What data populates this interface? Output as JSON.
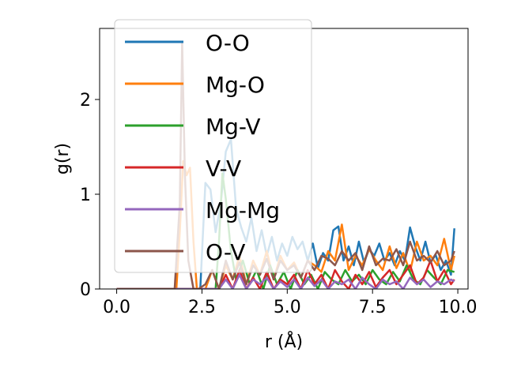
{
  "chart_data": {
    "type": "line",
    "xlabel": "r (Å)",
    "ylabel": "g(r)",
    "xlim": [
      -0.5,
      10.3
    ],
    "ylim": [
      0,
      2.75
    ],
    "xticks": [
      0.0,
      2.5,
      5.0,
      7.5,
      10.0
    ],
    "xtick_labels": [
      "0.0",
      "2.5",
      "5.0",
      "7.5",
      "10.0"
    ],
    "yticks": [
      0,
      1,
      2
    ],
    "ytick_labels": [
      "0",
      "1",
      "2"
    ],
    "grid": false,
    "legend": "upper-left",
    "series": [
      {
        "name": "O-O",
        "color": "#1f77b4",
        "x": [
          0.0,
          2.45,
          2.6,
          2.75,
          2.9,
          3.05,
          3.2,
          3.35,
          3.5,
          3.65,
          3.8,
          3.95,
          4.1,
          4.25,
          4.4,
          4.55,
          4.7,
          4.85,
          5.0,
          5.15,
          5.3,
          5.45,
          5.6,
          5.75,
          5.9,
          6.05,
          6.2,
          6.35,
          6.5,
          6.65,
          6.8,
          6.95,
          7.1,
          7.25,
          7.4,
          7.55,
          7.7,
          7.85,
          8.0,
          8.15,
          8.3,
          8.45,
          8.6,
          8.75,
          8.9,
          9.05,
          9.2,
          9.35,
          9.5,
          9.65,
          9.8,
          9.9
        ],
        "y": [
          0.0,
          0.0,
          1.12,
          1.05,
          0.6,
          0.9,
          1.45,
          1.58,
          0.85,
          0.65,
          0.5,
          0.75,
          0.4,
          0.62,
          0.35,
          0.55,
          0.3,
          0.48,
          0.35,
          0.55,
          0.42,
          0.5,
          0.3,
          0.48,
          0.22,
          0.38,
          0.3,
          0.62,
          0.66,
          0.3,
          0.45,
          0.25,
          0.5,
          0.28,
          0.42,
          0.35,
          0.48,
          0.3,
          0.38,
          0.25,
          0.4,
          0.3,
          0.65,
          0.45,
          0.3,
          0.5,
          0.28,
          0.36,
          0.2,
          0.3,
          0.15,
          0.64
        ]
      },
      {
        "name": "Mg-O",
        "color": "#ff7f0e",
        "x": [
          0.0,
          1.75,
          1.85,
          1.95,
          2.05,
          2.15,
          2.25,
          2.35,
          2.6,
          2.8,
          3.0,
          3.2,
          3.4,
          3.6,
          3.8,
          4.0,
          4.2,
          4.4,
          4.6,
          4.8,
          5.0,
          5.2,
          5.4,
          5.6,
          5.8,
          6.0,
          6.2,
          6.4,
          6.6,
          6.8,
          7.0,
          7.2,
          7.4,
          7.6,
          7.8,
          8.0,
          8.2,
          8.4,
          8.6,
          8.8,
          9.0,
          9.2,
          9.4,
          9.6,
          9.8,
          9.9
        ],
        "y": [
          0.0,
          0.0,
          0.6,
          1.35,
          1.2,
          1.28,
          0.5,
          0.0,
          0.0,
          0.2,
          0.0,
          0.25,
          0.1,
          0.35,
          0.05,
          0.3,
          0.15,
          0.4,
          0.1,
          0.35,
          0.2,
          0.28,
          0.12,
          0.3,
          0.25,
          0.18,
          0.4,
          0.3,
          0.68,
          0.2,
          0.35,
          0.25,
          0.42,
          0.3,
          0.2,
          0.45,
          0.22,
          0.38,
          0.18,
          0.5,
          0.3,
          0.35,
          0.25,
          0.53,
          0.2,
          0.35
        ]
      },
      {
        "name": "Mg-V",
        "color": "#2ca02c",
        "x": [
          0.0,
          2.9,
          3.0,
          3.1,
          3.2,
          3.35,
          3.5,
          3.7,
          3.9,
          4.1,
          4.3,
          4.5,
          4.7,
          4.9,
          5.1,
          5.3,
          5.5,
          5.7,
          5.9,
          6.1,
          6.3,
          6.5,
          6.7,
          6.9,
          7.1,
          7.3,
          7.5,
          7.7,
          7.9,
          8.1,
          8.3,
          8.5,
          8.7,
          8.9,
          9.1,
          9.3,
          9.5,
          9.7,
          9.9
        ],
        "y": [
          0.0,
          0.0,
          0.5,
          1.22,
          0.95,
          0.4,
          0.1,
          0.3,
          0.05,
          0.2,
          0.0,
          0.25,
          0.05,
          0.18,
          0.0,
          0.2,
          0.05,
          0.15,
          0.0,
          0.18,
          0.1,
          0.05,
          0.2,
          0.08,
          0.15,
          0.05,
          0.2,
          0.1,
          0.05,
          0.18,
          0.08,
          0.25,
          0.1,
          0.05,
          0.2,
          0.12,
          0.05,
          0.2,
          0.18
        ]
      },
      {
        "name": "V-V",
        "color": "#d62728",
        "x": [
          0.0,
          3.0,
          3.2,
          3.4,
          3.6,
          3.8,
          4.0,
          4.2,
          4.4,
          4.6,
          4.8,
          5.0,
          5.2,
          5.4,
          5.6,
          5.8,
          6.0,
          6.2,
          6.4,
          6.6,
          6.8,
          7.0,
          7.2,
          7.4,
          7.6,
          7.8,
          8.0,
          8.2,
          8.4,
          8.6,
          8.8,
          9.0,
          9.2,
          9.4,
          9.6,
          9.8,
          9.9
        ],
        "y": [
          0.0,
          0.0,
          0.15,
          0.0,
          0.2,
          0.0,
          0.12,
          0.0,
          0.18,
          0.0,
          0.1,
          0.05,
          0.15,
          0.0,
          0.2,
          0.05,
          0.15,
          0.0,
          0.2,
          0.08,
          0.0,
          0.15,
          0.05,
          0.18,
          0.02,
          0.12,
          0.2,
          0.05,
          0.15,
          0.25,
          0.05,
          0.12,
          0.3,
          0.08,
          0.2,
          0.05,
          0.1
        ]
      },
      {
        "name": "Mg-Mg",
        "color": "#9467bd",
        "x": [
          0.0,
          3.0,
          3.2,
          3.4,
          3.6,
          3.8,
          4.0,
          4.2,
          4.4,
          4.6,
          4.8,
          5.0,
          5.2,
          5.4,
          5.6,
          5.8,
          6.0,
          6.2,
          6.4,
          6.6,
          6.8,
          7.0,
          7.2,
          7.4,
          7.6,
          7.8,
          8.0,
          8.2,
          8.4,
          8.6,
          8.8,
          9.0,
          9.2,
          9.4,
          9.6,
          9.8,
          9.9
        ],
        "y": [
          0.0,
          0.0,
          0.1,
          0.0,
          0.15,
          0.0,
          0.1,
          0.05,
          0.12,
          0.0,
          0.08,
          0.02,
          0.1,
          0.0,
          0.12,
          0.03,
          0.1,
          0.0,
          0.08,
          0.05,
          0.1,
          0.0,
          0.12,
          0.05,
          0.0,
          0.1,
          0.05,
          0.08,
          0.0,
          0.12,
          0.05,
          0.1,
          0.02,
          0.08,
          0.05,
          0.1,
          0.08
        ]
      },
      {
        "name": "O-V",
        "color": "#8c564b",
        "x": [
          0.0,
          1.7,
          1.85,
          1.92,
          2.0,
          2.1,
          2.25,
          2.4,
          2.6,
          2.8,
          3.0,
          3.2,
          3.4,
          3.6,
          3.8,
          4.0,
          4.2,
          4.4,
          4.6,
          4.8,
          5.0,
          5.2,
          5.4,
          5.6,
          5.8,
          6.0,
          6.2,
          6.4,
          6.6,
          6.8,
          7.0,
          7.2,
          7.4,
          7.6,
          7.8,
          8.0,
          8.2,
          8.4,
          8.6,
          8.8,
          9.0,
          9.2,
          9.4,
          9.6,
          9.8,
          9.9
        ],
        "y": [
          0.0,
          0.0,
          0.9,
          2.6,
          1.2,
          0.3,
          0.0,
          0.0,
          0.05,
          0.2,
          0.0,
          0.3,
          0.1,
          0.28,
          0.05,
          0.25,
          0.15,
          0.32,
          0.1,
          0.3,
          0.2,
          0.25,
          0.12,
          0.3,
          0.2,
          0.35,
          0.32,
          0.25,
          0.4,
          0.3,
          0.38,
          0.2,
          0.45,
          0.25,
          0.32,
          0.3,
          0.42,
          0.25,
          0.5,
          0.3,
          0.35,
          0.28,
          0.4,
          0.25,
          0.3,
          0.4
        ]
      }
    ]
  }
}
